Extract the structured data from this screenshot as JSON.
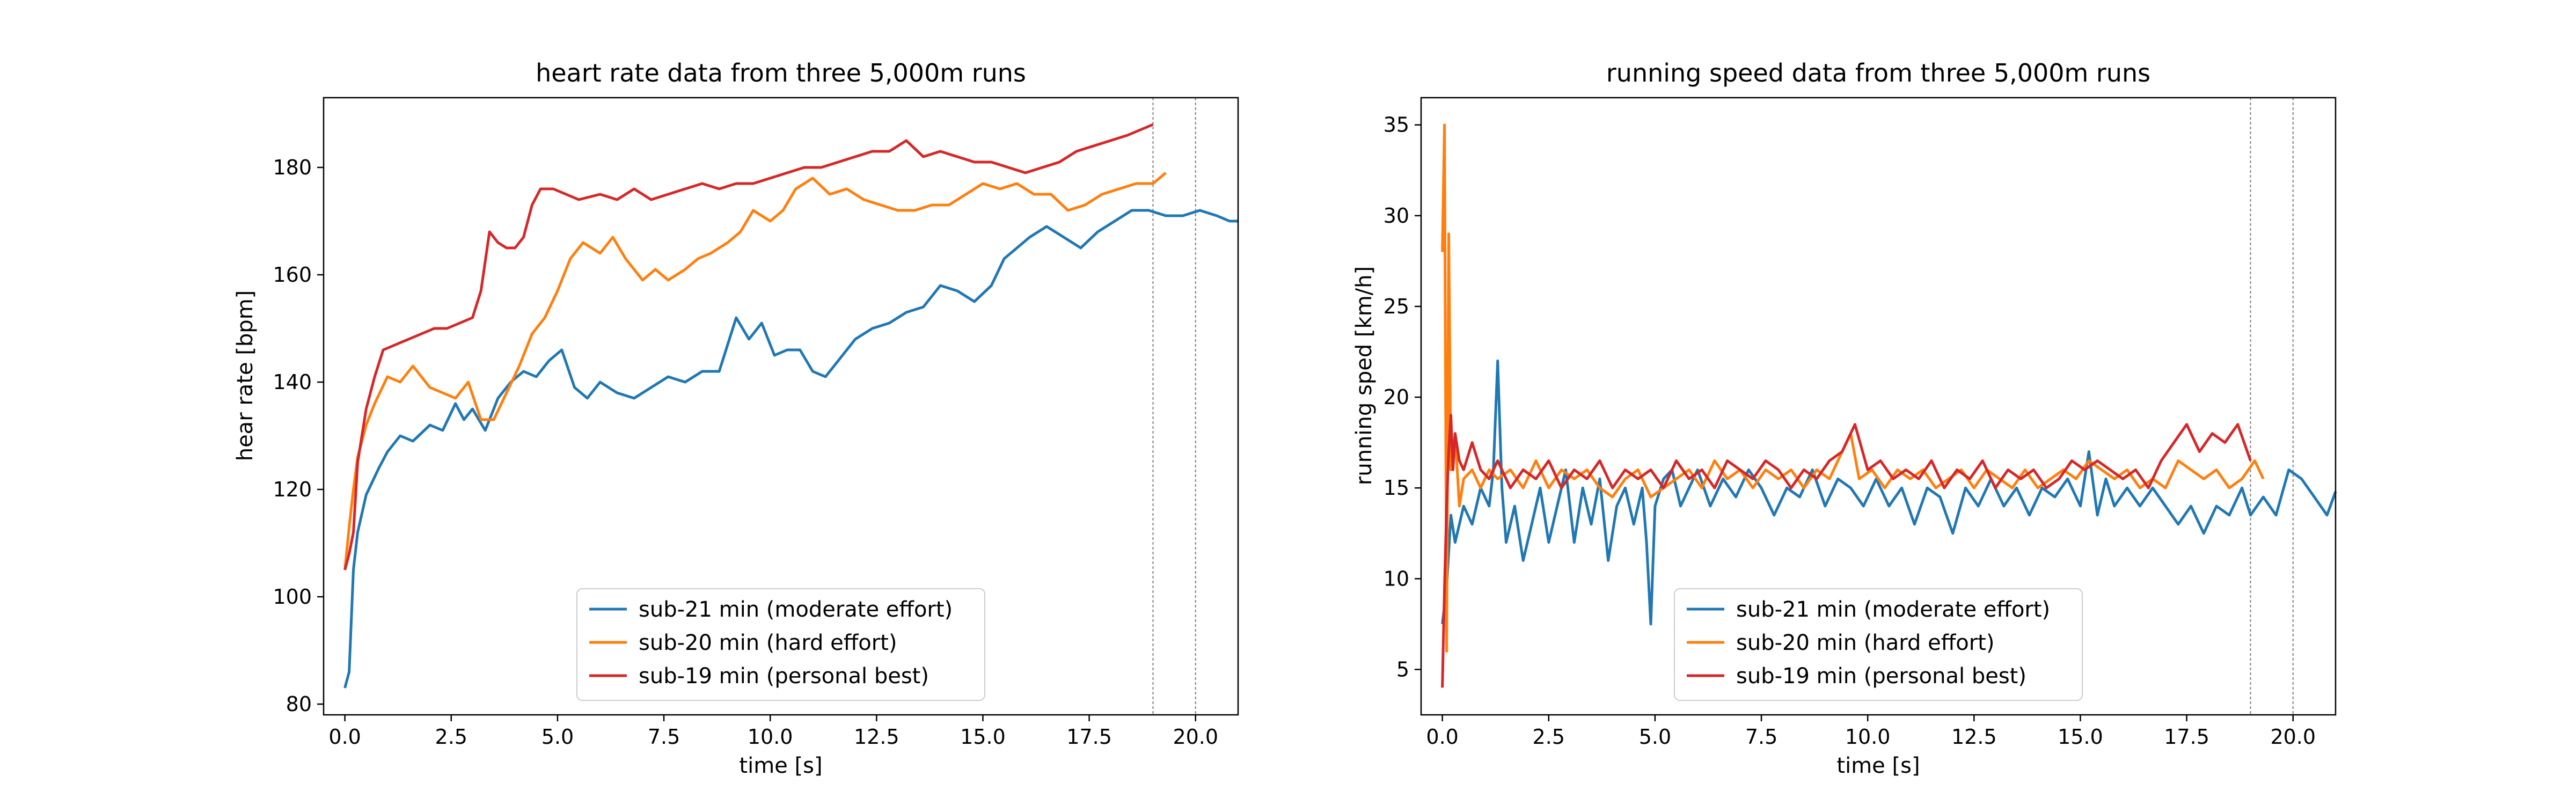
{
  "chart_data": [
    {
      "type": "line",
      "title": "heart rate data from three 5,000m runs",
      "xlabel": "time [s]",
      "ylabel": "hear rate [bpm]",
      "xlim": [
        -0.5,
        21
      ],
      "ylim": [
        78,
        193
      ],
      "xticks": [
        0.0,
        2.5,
        5.0,
        7.5,
        10.0,
        12.5,
        15.0,
        17.5,
        20.0
      ],
      "xtick_labels": [
        "0.0",
        "2.5",
        "5.0",
        "7.5",
        "10.0",
        "12.5",
        "15.0",
        "17.5",
        "20.0"
      ],
      "yticks": [
        80,
        100,
        120,
        140,
        160,
        180
      ],
      "ytick_labels": [
        "80",
        "100",
        "120",
        "140",
        "160",
        "180"
      ],
      "vlines": [
        19.0,
        20.0
      ],
      "legend_position": "lower-center",
      "series": [
        {
          "name": "sub-21 min (moderate effort)",
          "color": "#1f77b4",
          "x": [
            0.0,
            0.1,
            0.2,
            0.3,
            0.5,
            0.8,
            1.0,
            1.3,
            1.6,
            2.0,
            2.3,
            2.6,
            2.8,
            3.0,
            3.3,
            3.6,
            3.9,
            4.2,
            4.5,
            4.8,
            5.1,
            5.4,
            5.7,
            6.0,
            6.4,
            6.8,
            7.2,
            7.6,
            8.0,
            8.4,
            8.8,
            9.2,
            9.5,
            9.8,
            10.1,
            10.4,
            10.7,
            11.0,
            11.3,
            11.6,
            12.0,
            12.4,
            12.8,
            13.2,
            13.6,
            14.0,
            14.4,
            14.8,
            15.2,
            15.5,
            15.8,
            16.1,
            16.5,
            16.9,
            17.3,
            17.7,
            18.1,
            18.5,
            18.9,
            19.3,
            19.7,
            20.1,
            20.5,
            20.8,
            21.0
          ],
          "y": [
            83,
            86,
            105,
            112,
            119,
            124,
            127,
            130,
            129,
            132,
            131,
            136,
            133,
            135,
            131,
            137,
            140,
            142,
            141,
            144,
            146,
            139,
            137,
            140,
            138,
            137,
            139,
            141,
            140,
            142,
            142,
            152,
            148,
            151,
            145,
            146,
            146,
            142,
            141,
            144,
            148,
            150,
            151,
            153,
            154,
            158,
            157,
            155,
            158,
            163,
            165,
            167,
            169,
            167,
            165,
            168,
            170,
            172,
            172,
            171,
            171,
            172,
            171,
            170,
            170
          ]
        },
        {
          "name": "sub-20 min (hard effort)",
          "color": "#ff7f0e",
          "x": [
            0.0,
            0.1,
            0.2,
            0.3,
            0.5,
            0.7,
            1.0,
            1.3,
            1.6,
            2.0,
            2.3,
            2.6,
            2.9,
            3.2,
            3.5,
            3.8,
            4.1,
            4.4,
            4.7,
            5.0,
            5.3,
            5.6,
            6.0,
            6.3,
            6.6,
            7.0,
            7.3,
            7.6,
            8.0,
            8.3,
            8.6,
            9.0,
            9.3,
            9.6,
            10.0,
            10.3,
            10.6,
            11.0,
            11.4,
            11.8,
            12.2,
            12.6,
            13.0,
            13.4,
            13.8,
            14.2,
            14.6,
            15.0,
            15.4,
            15.8,
            16.2,
            16.6,
            17.0,
            17.4,
            17.8,
            18.2,
            18.6,
            19.0,
            19.3
          ],
          "y": [
            105,
            113,
            120,
            126,
            132,
            136,
            141,
            140,
            143,
            139,
            138,
            137,
            140,
            133,
            133,
            138,
            143,
            149,
            152,
            157,
            163,
            166,
            164,
            167,
            163,
            159,
            161,
            159,
            161,
            163,
            164,
            166,
            168,
            172,
            170,
            172,
            176,
            178,
            175,
            176,
            174,
            173,
            172,
            172,
            173,
            173,
            175,
            177,
            176,
            177,
            175,
            175,
            172,
            173,
            175,
            176,
            177,
            177,
            179
          ]
        },
        {
          "name": "sub-19 min (personal best)",
          "color": "#d62728",
          "x": [
            0.0,
            0.1,
            0.2,
            0.3,
            0.5,
            0.7,
            0.9,
            1.2,
            1.5,
            1.8,
            2.1,
            2.4,
            2.7,
            3.0,
            3.2,
            3.4,
            3.6,
            3.8,
            4.0,
            4.2,
            4.4,
            4.6,
            4.9,
            5.2,
            5.5,
            6.0,
            6.4,
            6.8,
            7.2,
            7.6,
            8.0,
            8.4,
            8.8,
            9.2,
            9.6,
            10.0,
            10.4,
            10.8,
            11.2,
            11.6,
            12.0,
            12.4,
            12.8,
            13.2,
            13.6,
            14.0,
            14.4,
            14.8,
            15.2,
            15.6,
            16.0,
            16.4,
            16.8,
            17.2,
            17.6,
            18.0,
            18.4,
            18.7,
            19.0
          ],
          "y": [
            105,
            108,
            112,
            125,
            135,
            141,
            146,
            147,
            148,
            149,
            150,
            150,
            151,
            152,
            157,
            168,
            166,
            165,
            165,
            167,
            173,
            176,
            176,
            175,
            174,
            175,
            174,
            176,
            174,
            175,
            176,
            177,
            176,
            177,
            177,
            178,
            179,
            180,
            180,
            181,
            182,
            183,
            183,
            185,
            182,
            183,
            182,
            181,
            181,
            180,
            179,
            180,
            181,
            183,
            184,
            185,
            186,
            187,
            188
          ]
        }
      ]
    },
    {
      "type": "line",
      "title": "running speed data from three 5,000m runs",
      "xlabel": "time [s]",
      "ylabel": "running sped [km/h]",
      "xlim": [
        -0.5,
        21
      ],
      "ylim": [
        2.5,
        36.5
      ],
      "xticks": [
        0.0,
        2.5,
        5.0,
        7.5,
        10.0,
        12.5,
        15.0,
        17.5,
        20.0
      ],
      "xtick_labels": [
        "0.0",
        "2.5",
        "5.0",
        "7.5",
        "10.0",
        "12.5",
        "15.0",
        "17.5",
        "20.0"
      ],
      "yticks": [
        5,
        10,
        15,
        20,
        25,
        30,
        35
      ],
      "ytick_labels": [
        "5",
        "10",
        "15",
        "20",
        "25",
        "30",
        "35"
      ],
      "vlines": [
        19.0,
        20.0
      ],
      "legend_position": "lower-center",
      "series": [
        {
          "name": "sub-21 min (moderate effort)",
          "color": "#1f77b4",
          "x": [
            0.0,
            0.1,
            0.2,
            0.3,
            0.5,
            0.7,
            0.9,
            1.1,
            1.2,
            1.3,
            1.4,
            1.5,
            1.7,
            1.9,
            2.1,
            2.3,
            2.5,
            2.7,
            2.9,
            3.1,
            3.3,
            3.5,
            3.7,
            3.9,
            4.1,
            4.3,
            4.5,
            4.7,
            4.8,
            4.9,
            5.0,
            5.2,
            5.4,
            5.6,
            5.8,
            6.0,
            6.3,
            6.6,
            6.9,
            7.2,
            7.5,
            7.8,
            8.1,
            8.4,
            8.7,
            9.0,
            9.3,
            9.6,
            9.9,
            10.2,
            10.5,
            10.8,
            11.1,
            11.4,
            11.7,
            12.0,
            12.3,
            12.6,
            12.9,
            13.2,
            13.5,
            13.8,
            14.1,
            14.4,
            14.7,
            15.0,
            15.2,
            15.4,
            15.6,
            15.8,
            16.1,
            16.4,
            16.7,
            17.0,
            17.3,
            17.6,
            17.9,
            18.2,
            18.5,
            18.8,
            19.0,
            19.3,
            19.6,
            19.9,
            20.2,
            20.5,
            20.8,
            21.0
          ],
          "y": [
            7.5,
            9.5,
            13.5,
            12.0,
            14.0,
            13.0,
            15.0,
            14.0,
            16.0,
            22.0,
            15.0,
            12.0,
            14.0,
            11.0,
            13.0,
            15.0,
            12.0,
            14.0,
            16.0,
            12.0,
            15.0,
            13.0,
            15.5,
            11.0,
            14.0,
            15.0,
            13.0,
            15.0,
            12.0,
            7.5,
            14.0,
            15.5,
            16.0,
            14.0,
            15.0,
            16.0,
            14.0,
            15.5,
            14.5,
            16.0,
            15.0,
            13.5,
            15.0,
            14.5,
            16.0,
            14.0,
            15.5,
            15.0,
            14.0,
            15.5,
            14.0,
            15.0,
            13.0,
            15.0,
            14.5,
            12.5,
            15.0,
            14.0,
            15.5,
            14.0,
            15.0,
            13.5,
            15.0,
            14.5,
            15.5,
            14.0,
            17.0,
            13.5,
            15.5,
            14.0,
            15.0,
            14.0,
            15.0,
            14.0,
            13.0,
            14.0,
            12.5,
            14.0,
            13.5,
            15.0,
            13.5,
            14.5,
            13.5,
            16.0,
            15.5,
            14.5,
            13.5,
            14.8
          ]
        },
        {
          "name": "sub-20 min (hard effort)",
          "color": "#ff7f0e",
          "x": [
            0.0,
            0.05,
            0.1,
            0.15,
            0.2,
            0.3,
            0.4,
            0.5,
            0.7,
            0.9,
            1.1,
            1.3,
            1.6,
            1.9,
            2.2,
            2.5,
            2.8,
            3.1,
            3.4,
            3.7,
            4.0,
            4.3,
            4.6,
            4.9,
            5.2,
            5.5,
            5.8,
            6.1,
            6.4,
            6.7,
            7.0,
            7.3,
            7.6,
            7.9,
            8.2,
            8.5,
            8.8,
            9.1,
            9.4,
            9.6,
            9.8,
            10.1,
            10.4,
            10.7,
            11.0,
            11.3,
            11.6,
            11.9,
            12.2,
            12.5,
            12.8,
            13.1,
            13.4,
            13.7,
            14.0,
            14.3,
            14.6,
            14.9,
            15.2,
            15.5,
            15.8,
            16.1,
            16.4,
            16.7,
            17.0,
            17.3,
            17.6,
            17.9,
            18.2,
            18.5,
            18.8,
            19.1,
            19.3
          ],
          "y": [
            28.0,
            35.0,
            6.0,
            29.0,
            16.0,
            18.0,
            14.0,
            15.5,
            16.0,
            15.0,
            16.0,
            15.5,
            16.0,
            15.0,
            16.5,
            15.0,
            16.0,
            15.5,
            16.0,
            15.0,
            14.5,
            15.5,
            16.0,
            14.5,
            15.0,
            15.5,
            16.0,
            15.0,
            16.5,
            15.5,
            16.0,
            15.0,
            16.0,
            15.5,
            16.0,
            15.0,
            16.0,
            15.5,
            17.0,
            18.0,
            15.5,
            16.0,
            15.0,
            16.0,
            15.5,
            16.0,
            15.0,
            15.5,
            16.0,
            15.0,
            16.0,
            15.5,
            15.0,
            16.0,
            15.0,
            15.5,
            16.0,
            15.5,
            16.5,
            16.0,
            15.5,
            16.0,
            15.0,
            15.5,
            15.0,
            16.5,
            16.0,
            15.5,
            16.0,
            15.0,
            15.5,
            16.5,
            15.5
          ]
        },
        {
          "name": "sub-19 min (personal best)",
          "color": "#d62728",
          "x": [
            0.0,
            0.05,
            0.1,
            0.15,
            0.2,
            0.25,
            0.3,
            0.4,
            0.5,
            0.7,
            0.9,
            1.1,
            1.3,
            1.6,
            1.9,
            2.2,
            2.5,
            2.8,
            3.1,
            3.4,
            3.7,
            4.0,
            4.3,
            4.6,
            4.9,
            5.2,
            5.5,
            5.8,
            6.1,
            6.4,
            6.7,
            7.0,
            7.3,
            7.6,
            7.9,
            8.2,
            8.5,
            8.8,
            9.1,
            9.4,
            9.7,
            10.0,
            10.3,
            10.6,
            10.9,
            11.2,
            11.5,
            11.8,
            12.1,
            12.4,
            12.7,
            13.0,
            13.3,
            13.6,
            13.9,
            14.2,
            14.5,
            14.8,
            15.1,
            15.4,
            15.7,
            16.0,
            16.3,
            16.6,
            16.9,
            17.2,
            17.5,
            17.8,
            18.1,
            18.4,
            18.7,
            19.0
          ],
          "y": [
            4.0,
            9.5,
            14.0,
            17.0,
            19.0,
            16.0,
            18.0,
            16.5,
            16.0,
            17.5,
            16.0,
            15.5,
            16.5,
            15.0,
            16.0,
            15.5,
            16.5,
            15.0,
            16.0,
            15.5,
            16.5,
            15.0,
            16.0,
            15.5,
            16.0,
            15.0,
            16.5,
            15.5,
            16.0,
            15.0,
            16.5,
            16.0,
            15.5,
            16.5,
            16.0,
            15.0,
            16.0,
            15.5,
            16.5,
            17.0,
            18.5,
            16.0,
            16.5,
            15.5,
            16.0,
            15.5,
            16.5,
            15.0,
            16.0,
            15.5,
            16.5,
            15.0,
            16.0,
            15.5,
            16.0,
            15.0,
            15.5,
            16.5,
            16.0,
            16.5,
            16.0,
            15.5,
            16.0,
            15.0,
            16.5,
            17.5,
            18.5,
            17.0,
            18.0,
            17.5,
            18.5,
            16.5
          ]
        }
      ]
    }
  ]
}
